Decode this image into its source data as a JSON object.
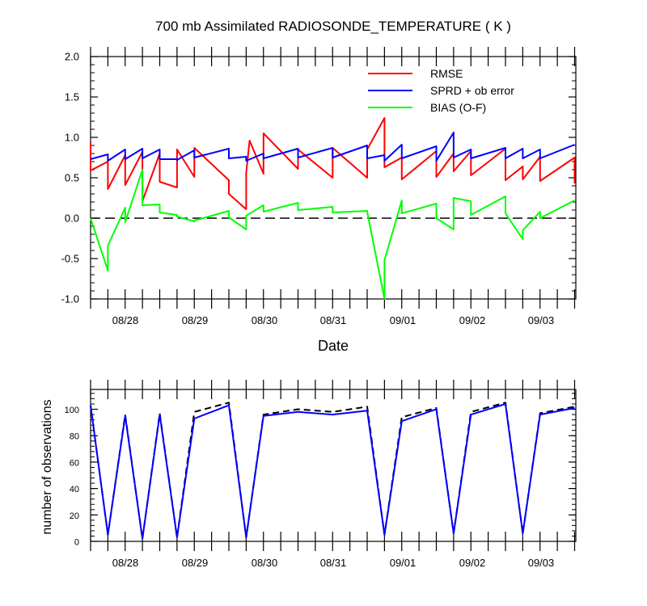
{
  "chart_data": [
    {
      "type": "line",
      "title": "700 mb Assimilated RADIOSONDE_TEMPERATURE ( K )",
      "xlabel": "Date",
      "ylabel": "",
      "xlim": [
        0,
        7.0
      ],
      "ylim": [
        -1.0,
        2.0
      ],
      "yticks": [
        "2.0",
        "1.5",
        "1.0",
        "0.5",
        "0.0",
        "-0.5",
        "-1.0"
      ],
      "date_labels": [
        "08/28",
        "08/29",
        "08/30",
        "08/31",
        "09/01",
        "09/02",
        "09/03"
      ],
      "grid": false,
      "legend_position": "top-right",
      "reference_line": {
        "y": 0.0,
        "style": "dashed"
      },
      "series": [
        {
          "name": "RMSE",
          "color": "#ff0000",
          "x": [
            0.0,
            0.0,
            0.25,
            0.25,
            0.5,
            0.5,
            0.75,
            0.75,
            1.0,
            1.0,
            1.25,
            1.25,
            1.5,
            1.5,
            2.0,
            2.0,
            2.25,
            2.25,
            2.3,
            2.5,
            2.5,
            3.0,
            3.0,
            3.5,
            3.5,
            4.0,
            4.0,
            4.25,
            4.25,
            4.5,
            4.5,
            5.0,
            5.0,
            5.25,
            5.25,
            5.5,
            5.5,
            6.0,
            6.0,
            6.25,
            6.25,
            6.5,
            6.5,
            7.0,
            7.0
          ],
          "y": [
            0.94,
            0.59,
            0.7,
            0.36,
            0.78,
            0.41,
            0.82,
            0.21,
            0.8,
            0.45,
            0.38,
            0.85,
            0.51,
            0.87,
            0.47,
            0.3,
            0.11,
            0.56,
            0.96,
            0.55,
            1.05,
            0.61,
            0.85,
            0.5,
            0.87,
            0.5,
            0.85,
            1.24,
            0.63,
            0.75,
            0.48,
            0.83,
            0.51,
            0.8,
            0.58,
            0.83,
            0.53,
            0.86,
            0.47,
            0.64,
            0.48,
            0.76,
            0.46,
            0.75,
            0.43
          ]
        },
        {
          "name": "SPRD + ob error",
          "color": "#0000ff",
          "x": [
            0.0,
            0.25,
            0.25,
            0.5,
            0.5,
            0.75,
            0.75,
            1.0,
            1.0,
            1.25,
            1.25,
            1.5,
            1.5,
            2.0,
            2.0,
            2.25,
            2.25,
            2.5,
            2.5,
            3.0,
            3.0,
            3.5,
            3.5,
            4.0,
            4.0,
            4.25,
            4.25,
            4.5,
            4.5,
            5.0,
            5.0,
            5.25,
            5.25,
            5.5,
            5.5,
            6.0,
            6.0,
            6.25,
            6.25,
            6.5,
            6.5,
            7.0
          ],
          "y": [
            0.73,
            0.79,
            0.71,
            0.85,
            0.73,
            0.86,
            0.74,
            0.85,
            0.73,
            0.73,
            0.72,
            0.84,
            0.75,
            0.86,
            0.74,
            0.76,
            0.71,
            0.8,
            0.74,
            0.86,
            0.75,
            0.87,
            0.75,
            0.9,
            0.74,
            0.78,
            0.71,
            0.91,
            0.74,
            0.89,
            0.71,
            1.06,
            0.75,
            0.85,
            0.74,
            0.87,
            0.74,
            0.86,
            0.74,
            0.85,
            0.74,
            0.91
          ]
        },
        {
          "name": "BIAS (O-F)",
          "color": "#00ff00",
          "x": [
            0.0,
            0.25,
            0.25,
            0.5,
            0.5,
            0.75,
            0.75,
            1.0,
            1.0,
            1.25,
            1.25,
            1.5,
            1.5,
            2.0,
            2.0,
            2.25,
            2.25,
            2.5,
            2.5,
            3.0,
            3.0,
            3.5,
            3.5,
            4.0,
            4.0,
            4.25,
            4.25,
            4.5,
            4.5,
            5.0,
            5.0,
            5.25,
            5.25,
            5.5,
            5.5,
            6.0,
            6.0,
            6.25,
            6.25,
            6.5,
            6.5,
            7.0
          ],
          "y": [
            0.0,
            -0.65,
            -0.34,
            0.13,
            -0.05,
            0.6,
            0.16,
            0.17,
            0.07,
            0.04,
            0.02,
            -0.04,
            -0.03,
            0.09,
            0.01,
            -0.14,
            0.03,
            0.16,
            0.08,
            0.19,
            0.1,
            0.14,
            0.07,
            0.09,
            0.08,
            -1.0,
            -0.52,
            0.22,
            0.06,
            0.18,
            0.0,
            -0.14,
            0.25,
            0.21,
            0.04,
            0.27,
            0.06,
            -0.26,
            -0.15,
            0.08,
            0.0,
            0.22
          ]
        }
      ]
    },
    {
      "type": "line",
      "title": "",
      "xlabel": "",
      "ylabel": "number of observations",
      "xlim": [
        0,
        7.0
      ],
      "ylim": [
        0,
        115
      ],
      "yticks": [
        "100",
        "80",
        "60",
        "40",
        "20",
        "0"
      ],
      "date_labels": [
        "08/28",
        "08/29",
        "08/30",
        "08/31",
        "09/01",
        "09/02",
        "09/03"
      ],
      "grid": false,
      "series": [
        {
          "color": "#000000",
          "style": "dashed",
          "x": [
            0.0,
            0.25,
            0.5,
            0.75,
            1.0,
            1.25,
            1.5,
            2.0,
            2.25,
            2.5,
            3.0,
            3.5,
            4.0,
            4.25,
            4.5,
            5.0,
            5.25,
            5.5,
            6.0,
            6.25,
            6.5,
            7.0
          ],
          "y": [
            103,
            5,
            96,
            2,
            97,
            3,
            98,
            105,
            3,
            96,
            100,
            98,
            102,
            5,
            94,
            101,
            6,
            98,
            105,
            6,
            97,
            102
          ]
        },
        {
          "color": "#0000ff",
          "style": "solid",
          "x": [
            0.0,
            0.25,
            0.5,
            0.75,
            1.0,
            1.25,
            1.5,
            2.0,
            2.25,
            2.5,
            3.0,
            3.5,
            4.0,
            4.25,
            4.5,
            5.0,
            5.25,
            5.5,
            6.0,
            6.25,
            6.5,
            7.0
          ],
          "y": [
            103,
            5,
            95,
            2,
            96,
            3,
            93,
            103,
            3,
            95,
            98,
            96,
            99,
            5,
            91,
            100,
            6,
            96,
            104,
            6,
            96,
            101
          ]
        }
      ]
    }
  ]
}
